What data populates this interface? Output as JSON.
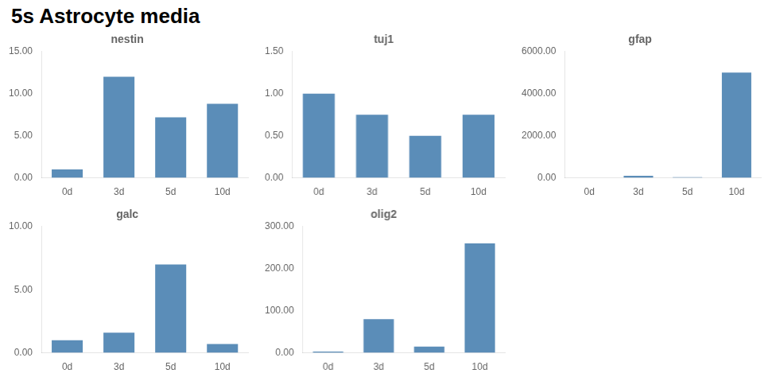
{
  "title": "5s Astrocyte media",
  "chart_data": [
    {
      "type": "bar",
      "title": "nestin",
      "categories": [
        "0d",
        "3d",
        "5d",
        "10d"
      ],
      "values": [
        1.0,
        12.0,
        7.2,
        8.8
      ],
      "color": "#5b8db8",
      "ylim": [
        0,
        15.0
      ],
      "yticks": [
        {
          "value": 0.0,
          "label": "0.00"
        },
        {
          "value": 5.0,
          "label": "5.00"
        },
        {
          "value": 10.0,
          "label": "10.00"
        },
        {
          "value": 15.0,
          "label": "15.00"
        }
      ],
      "grid": false
    },
    {
      "type": "bar",
      "title": "tuj1",
      "categories": [
        "0d",
        "3d",
        "5d",
        "10d"
      ],
      "values": [
        1.0,
        0.75,
        0.5,
        0.75
      ],
      "color": "#5b8db8",
      "ylim": [
        0,
        1.5
      ],
      "yticks": [
        {
          "value": 0.0,
          "label": "0.00"
        },
        {
          "value": 0.5,
          "label": "0.50"
        },
        {
          "value": 1.0,
          "label": "1.00"
        },
        {
          "value": 1.5,
          "label": "1.50"
        }
      ],
      "grid": false
    },
    {
      "type": "bar",
      "title": "gfap",
      "categories": [
        "0d",
        "3d",
        "5d",
        "10d"
      ],
      "values": [
        0.0,
        100.0,
        30.0,
        5000.0
      ],
      "color": "#5b8db8",
      "ylim": [
        0,
        6000.0
      ],
      "yticks": [
        {
          "value": 0.0,
          "label": "0.00"
        },
        {
          "value": 2000.0,
          "label": "2000.00"
        },
        {
          "value": 4000.0,
          "label": "4000.00"
        },
        {
          "value": 6000.0,
          "label": "6000.00"
        }
      ],
      "grid": false
    },
    {
      "type": "bar",
      "title": "galc",
      "categories": [
        "0d",
        "3d",
        "5d",
        "10d"
      ],
      "values": [
        1.0,
        1.6,
        7.0,
        0.7
      ],
      "color": "#5b8db8",
      "ylim": [
        0,
        10.0
      ],
      "yticks": [
        {
          "value": 0.0,
          "label": "0.00"
        },
        {
          "value": 5.0,
          "label": "5.00"
        },
        {
          "value": 10.0,
          "label": "10.00"
        }
      ],
      "grid": false
    },
    {
      "type": "bar",
      "title": "olig2",
      "categories": [
        "0d",
        "3d",
        "5d",
        "10d"
      ],
      "values": [
        3.0,
        80.0,
        15.0,
        260.0
      ],
      "color": "#5b8db8",
      "ylim": [
        0,
        300.0
      ],
      "yticks": [
        {
          "value": 0.0,
          "label": "0.00"
        },
        {
          "value": 100.0,
          "label": "100.00"
        },
        {
          "value": 200.0,
          "label": "200.00"
        },
        {
          "value": 300.0,
          "label": "300.00"
        }
      ],
      "grid": false
    }
  ]
}
